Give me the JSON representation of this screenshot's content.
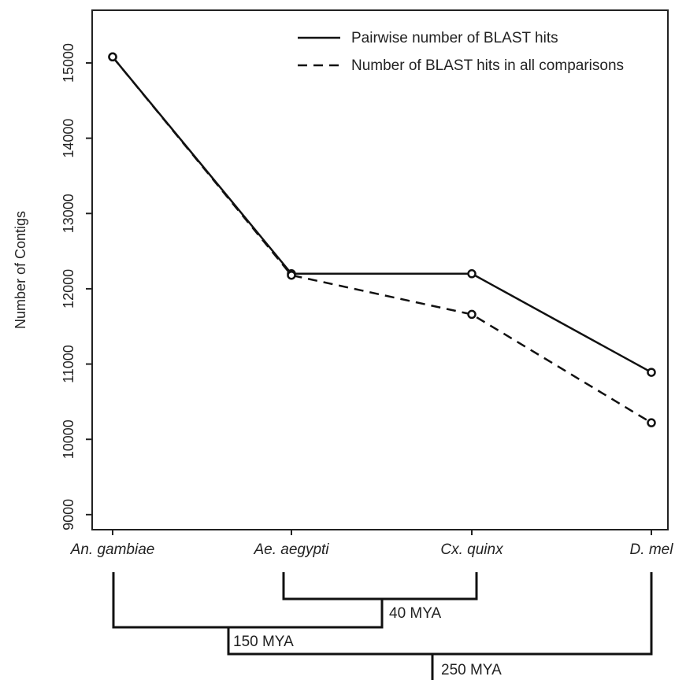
{
  "chart_data": {
    "type": "line",
    "categories": [
      "An. gambiae",
      "Ae. aegypti",
      "Cx. quinx",
      "D. mel"
    ],
    "series": [
      {
        "name": "Pairwise number of BLAST hits",
        "style": "solid",
        "color": "#111111",
        "values": [
          15080,
          12200,
          12200,
          10890
        ]
      },
      {
        "name": "Number of BLAST hits in all comparisons",
        "style": "dashed",
        "color": "#111111",
        "values": [
          15080,
          12180,
          11660,
          10220
        ]
      }
    ],
    "title": "",
    "xlabel": "",
    "ylabel": "Number of Contigs",
    "ylim": [
      8800,
      15700
    ],
    "yticks": [
      9000,
      10000,
      11000,
      12000,
      13000,
      14000,
      15000
    ],
    "grid": false,
    "legend_position": "top-right",
    "marker": "open-circle"
  },
  "phylogeny": {
    "nodes": [
      {
        "label": "40 MYA"
      },
      {
        "label": "150 MYA"
      },
      {
        "label": "250 MYA"
      }
    ]
  }
}
